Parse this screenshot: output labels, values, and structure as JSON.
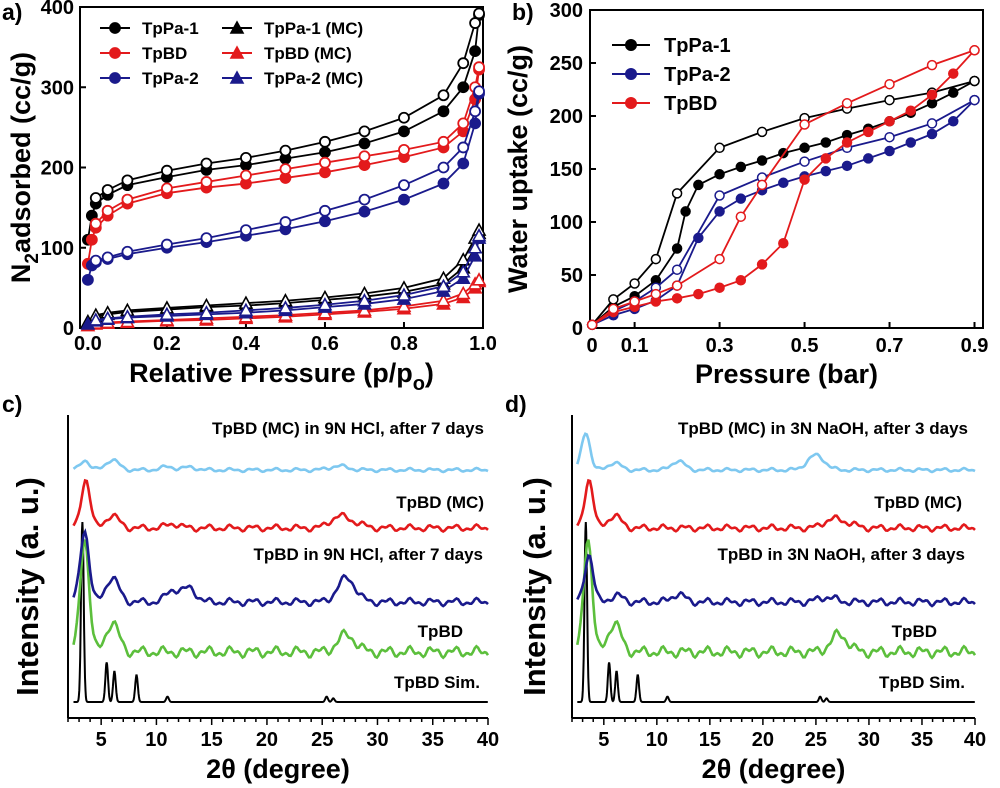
{
  "chart_data": [
    {
      "panel": "a)",
      "type": "line",
      "xlabel": "Relative Pressure (p/p",
      "xlabel_sub": "o",
      "xlabel_close": ")",
      "ylabel_pre": "N",
      "ylabel_sub": "2",
      "ylabel_post": "adsorbed (cc/g)",
      "xlim": [
        -0.02,
        1.0
      ],
      "ylim": [
        0,
        400
      ],
      "xticks": [
        "0.0",
        "0.2",
        "0.4",
        "0.6",
        "0.8",
        "1.0"
      ],
      "yticks": [
        "0",
        "100",
        "200",
        "300",
        "400"
      ],
      "legend_position": "top-left",
      "series": [
        {
          "name": "TpPa-1",
          "color": "#000000",
          "marker": "circle",
          "x": [
            0.0,
            0.01,
            0.02,
            0.05,
            0.1,
            0.2,
            0.3,
            0.4,
            0.5,
            0.6,
            0.7,
            0.8,
            0.9,
            0.95,
            0.98,
            0.99
          ],
          "y": [
            110,
            140,
            155,
            166,
            178,
            188,
            197,
            203,
            211,
            219,
            230,
            245,
            270,
            300,
            345,
            390
          ],
          "desorb_y": [
            null,
            null,
            162,
            172,
            184,
            196,
            205,
            212,
            221,
            232,
            245,
            262,
            290,
            330,
            380,
            392
          ]
        },
        {
          "name": "TpBD",
          "color": "#e31a1c",
          "marker": "circle",
          "x": [
            0.0,
            0.01,
            0.02,
            0.05,
            0.1,
            0.2,
            0.3,
            0.4,
            0.5,
            0.6,
            0.7,
            0.8,
            0.9,
            0.95,
            0.98,
            0.99
          ],
          "y": [
            80,
            110,
            125,
            140,
            155,
            168,
            175,
            180,
            187,
            194,
            203,
            213,
            225,
            245,
            285,
            322
          ],
          "desorb_y": [
            null,
            null,
            130,
            146,
            160,
            174,
            182,
            190,
            198,
            206,
            214,
            222,
            232,
            255,
            300,
            325
          ]
        },
        {
          "name": "TpPa-2",
          "color": "#1a1a8c",
          "marker": "circle",
          "x": [
            0.0,
            0.01,
            0.02,
            0.05,
            0.1,
            0.2,
            0.3,
            0.4,
            0.5,
            0.6,
            0.7,
            0.8,
            0.9,
            0.95,
            0.98,
            0.99
          ],
          "y": [
            60,
            78,
            82,
            86,
            92,
            100,
            107,
            115,
            123,
            133,
            145,
            160,
            180,
            205,
            255,
            292
          ],
          "desorb_y": [
            null,
            null,
            84,
            88,
            95,
            104,
            112,
            122,
            132,
            146,
            160,
            178,
            200,
            225,
            270,
            295
          ]
        },
        {
          "name": "TpPa-1 (MC)",
          "color": "#000000",
          "marker": "triangle",
          "x": [
            0.0,
            0.02,
            0.05,
            0.1,
            0.2,
            0.3,
            0.4,
            0.5,
            0.6,
            0.7,
            0.8,
            0.9,
            0.95,
            0.98,
            0.99
          ],
          "y": [
            8,
            14,
            17,
            20,
            23,
            26,
            28,
            31,
            35,
            39,
            45,
            55,
            75,
            100,
            118
          ],
          "desorb_y": [
            null,
            16,
            19,
            22,
            25,
            28,
            31,
            34,
            38,
            43,
            50,
            62,
            85,
            112,
            122
          ]
        },
        {
          "name": "TpBD (MC)",
          "color": "#e31a1c",
          "marker": "triangle",
          "x": [
            0.0,
            0.02,
            0.05,
            0.1,
            0.2,
            0.3,
            0.4,
            0.5,
            0.6,
            0.7,
            0.8,
            0.9,
            0.95,
            0.98,
            0.99
          ],
          "y": [
            3,
            5,
            6,
            7,
            9,
            10,
            12,
            14,
            17,
            20,
            24,
            30,
            38,
            50,
            58
          ],
          "desorb_y": [
            null,
            6,
            7,
            8,
            10,
            12,
            14,
            16,
            19,
            22,
            27,
            34,
            43,
            55,
            60
          ]
        },
        {
          "name": "TpPa-2 (MC)",
          "color": "#1a1a8c",
          "marker": "triangle",
          "x": [
            0.0,
            0.02,
            0.05,
            0.1,
            0.2,
            0.3,
            0.4,
            0.5,
            0.6,
            0.7,
            0.8,
            0.9,
            0.95,
            0.98,
            0.99
          ],
          "y": [
            5,
            9,
            11,
            13,
            15,
            17,
            19,
            22,
            26,
            30,
            36,
            46,
            62,
            90,
            112
          ],
          "desorb_y": [
            null,
            10,
            12,
            14,
            17,
            19,
            22,
            25,
            29,
            34,
            41,
            52,
            70,
            100,
            115
          ]
        }
      ]
    },
    {
      "panel": "b)",
      "type": "line",
      "xlabel": "Pressure (bar)",
      "ylabel": "Water uptake (cc/g)",
      "xlim": [
        -0.005,
        0.92
      ],
      "ylim": [
        0,
        300
      ],
      "xticks": [
        "0",
        "0.1",
        "0.3",
        "0.5",
        "0.7",
        "0.9"
      ],
      "xtick_values": [
        0,
        0.1,
        0.3,
        0.5,
        0.7,
        0.9
      ],
      "yticks": [
        "0",
        "50",
        "100",
        "150",
        "200",
        "250",
        "300"
      ],
      "legend_position": "top-left",
      "series": [
        {
          "name": "TpPa-1",
          "color": "#000000",
          "x": [
            0.0,
            0.05,
            0.1,
            0.15,
            0.2,
            0.22,
            0.25,
            0.3,
            0.35,
            0.4,
            0.45,
            0.5,
            0.55,
            0.6,
            0.65,
            0.7,
            0.75,
            0.8,
            0.85,
            0.9
          ],
          "y": [
            3,
            20,
            30,
            45,
            75,
            110,
            135,
            145,
            152,
            158,
            165,
            170,
            175,
            182,
            188,
            195,
            203,
            212,
            222,
            233
          ],
          "desorb_x": [
            0.0,
            0.05,
            0.1,
            0.15,
            0.2,
            0.3,
            0.4,
            0.5,
            0.6,
            0.7,
            0.8,
            0.9
          ],
          "desorb_y": [
            3,
            27,
            42,
            65,
            127,
            170,
            185,
            198,
            207,
            215,
            222,
            233
          ]
        },
        {
          "name": "TpPa-2",
          "color": "#1a1a8c",
          "x": [
            0.0,
            0.05,
            0.1,
            0.15,
            0.2,
            0.25,
            0.3,
            0.35,
            0.4,
            0.45,
            0.5,
            0.55,
            0.6,
            0.65,
            0.7,
            0.75,
            0.8,
            0.85,
            0.9
          ],
          "y": [
            3,
            12,
            18,
            26,
            40,
            85,
            110,
            122,
            130,
            137,
            143,
            148,
            153,
            160,
            167,
            175,
            183,
            195,
            215
          ],
          "desorb_x": [
            0.0,
            0.05,
            0.1,
            0.15,
            0.2,
            0.3,
            0.4,
            0.5,
            0.6,
            0.7,
            0.8,
            0.9
          ],
          "desorb_y": [
            3,
            16,
            25,
            38,
            55,
            125,
            142,
            157,
            170,
            180,
            193,
            215
          ]
        },
        {
          "name": "TpBD",
          "color": "#e31a1c",
          "x": [
            0.0,
            0.05,
            0.1,
            0.15,
            0.2,
            0.25,
            0.3,
            0.35,
            0.4,
            0.45,
            0.5,
            0.55,
            0.6,
            0.65,
            0.7,
            0.75,
            0.8,
            0.85,
            0.9
          ],
          "y": [
            3,
            15,
            20,
            25,
            28,
            32,
            38,
            45,
            60,
            80,
            140,
            160,
            175,
            185,
            195,
            205,
            220,
            240,
            262
          ],
          "desorb_x": [
            0.0,
            0.05,
            0.1,
            0.15,
            0.2,
            0.3,
            0.35,
            0.4,
            0.5,
            0.6,
            0.7,
            0.8,
            0.9
          ],
          "desorb_y": [
            3,
            18,
            25,
            32,
            40,
            65,
            105,
            135,
            192,
            212,
            230,
            248,
            262
          ]
        }
      ]
    },
    {
      "panel": "c)",
      "type": "line",
      "xlabel": "2θ (degree)",
      "ylabel": "Intensity (a. u.)",
      "xlim": [
        2,
        40
      ],
      "xticks": [
        "5",
        "10",
        "15",
        "20",
        "25",
        "30",
        "35",
        "40"
      ],
      "series": [
        {
          "name": "TpBD Sim.",
          "color": "#000000",
          "peaks": [
            [
              3.3,
              1.0
            ],
            [
              5.5,
              0.22
            ],
            [
              6.2,
              0.17
            ],
            [
              8.2,
              0.15
            ],
            [
              11.0,
              0.03
            ],
            [
              25.4,
              0.03
            ],
            [
              26.0,
              0.02
            ]
          ],
          "offset": 0
        },
        {
          "name": "TpBD",
          "color": "#5cbf3c",
          "peaks": [
            [
              3.5,
              1.0
            ],
            [
              6.0,
              0.25
            ],
            [
              27.2,
              0.15
            ]
          ],
          "offset": 1
        },
        {
          "name": "TpBD in 9N HCl, after 7 days",
          "color": "#1a1a8c",
          "peaks": [
            [
              3.5,
              0.9
            ],
            [
              6.0,
              0.3
            ],
            [
              11.5,
              0.15
            ],
            [
              13.0,
              0.17
            ],
            [
              27.2,
              0.3
            ]
          ],
          "offset": 2
        },
        {
          "name": "TpBD (MC)",
          "color": "#e31a1c",
          "peaks": [
            [
              3.6,
              0.7
            ],
            [
              6.0,
              0.18
            ],
            [
              11.5,
              0.06
            ],
            [
              26.5,
              0.16
            ],
            [
              28.0,
              0.06
            ]
          ],
          "offset": 3
        },
        {
          "name": "TpBD (MC) in 9N HCl, after 7 days",
          "color": "#7ec8f0",
          "peaks": [
            [
              3.5,
              0.25
            ],
            [
              6.0,
              0.25
            ],
            [
              11.0,
              0.08
            ],
            [
              13.0,
              0.07
            ],
            [
              26.5,
              0.1
            ]
          ],
          "offset": 4
        }
      ]
    },
    {
      "panel": "d)",
      "type": "line",
      "xlabel": "2θ (degree)",
      "ylabel": "Intensity (a. u.)",
      "xlim": [
        2,
        40
      ],
      "xticks": [
        "5",
        "10",
        "15",
        "20",
        "25",
        "30",
        "35",
        "40"
      ],
      "series": [
        {
          "name": "TpBD Sim.",
          "color": "#000000",
          "peaks": [
            [
              3.3,
              1.0
            ],
            [
              5.5,
              0.22
            ],
            [
              6.2,
              0.17
            ],
            [
              8.2,
              0.15
            ],
            [
              11.0,
              0.03
            ],
            [
              25.4,
              0.03
            ],
            [
              26.0,
              0.02
            ]
          ],
          "offset": 0
        },
        {
          "name": "TpBD",
          "color": "#5cbf3c",
          "peaks": [
            [
              3.5,
              1.0
            ],
            [
              6.0,
              0.25
            ],
            [
              27.2,
              0.15
            ]
          ],
          "offset": 1
        },
        {
          "name": "TpBD in 3N NaOH, after 3 days",
          "color": "#1a1a8c",
          "peaks": [
            [
              3.6,
              0.6
            ],
            [
              6.2,
              0.08
            ],
            [
              12.0,
              0.1
            ],
            [
              26.0,
              0.06
            ]
          ],
          "offset": 2
        },
        {
          "name": "TpBD (MC)",
          "color": "#e31a1c",
          "peaks": [
            [
              3.6,
              0.7
            ],
            [
              6.0,
              0.18
            ],
            [
              26.5,
              0.12
            ],
            [
              28.0,
              0.06
            ]
          ],
          "offset": 3
        },
        {
          "name": "TpBD (MC) in 3N NaOH, after 3 days",
          "color": "#7ec8f0",
          "peaks": [
            [
              3.3,
              0.95
            ],
            [
              6.0,
              0.18
            ],
            [
              12.0,
              0.23
            ],
            [
              25.0,
              0.37
            ]
          ],
          "offset": 4
        }
      ]
    }
  ]
}
